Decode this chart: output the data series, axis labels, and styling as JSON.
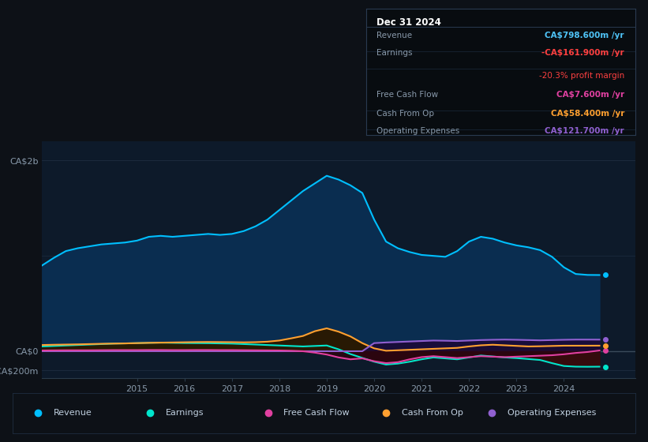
{
  "bg_color": "#0d1117",
  "plot_bg_color": "#0d1a2a",
  "title_text": "Dec 31 2024",
  "years": [
    2013.0,
    2013.25,
    2013.5,
    2013.75,
    2014.0,
    2014.25,
    2014.5,
    2014.75,
    2015.0,
    2015.25,
    2015.5,
    2015.75,
    2016.0,
    2016.25,
    2016.5,
    2016.75,
    2017.0,
    2017.25,
    2017.5,
    2017.75,
    2018.0,
    2018.25,
    2018.5,
    2018.75,
    2019.0,
    2019.25,
    2019.5,
    2019.75,
    2020.0,
    2020.25,
    2020.5,
    2020.75,
    2021.0,
    2021.25,
    2021.5,
    2021.75,
    2022.0,
    2022.25,
    2022.5,
    2022.75,
    2023.0,
    2023.25,
    2023.5,
    2023.75,
    2024.0,
    2024.25,
    2024.5,
    2024.75
  ],
  "revenue": [
    900,
    980,
    1050,
    1080,
    1100,
    1120,
    1130,
    1140,
    1160,
    1200,
    1210,
    1200,
    1210,
    1220,
    1230,
    1220,
    1230,
    1260,
    1310,
    1380,
    1480,
    1580,
    1680,
    1760,
    1840,
    1800,
    1740,
    1660,
    1380,
    1150,
    1080,
    1040,
    1010,
    1000,
    990,
    1050,
    1150,
    1200,
    1180,
    1140,
    1110,
    1090,
    1060,
    990,
    880,
    810,
    800,
    799
  ],
  "earnings": [
    50,
    55,
    60,
    65,
    70,
    75,
    80,
    82,
    85,
    88,
    90,
    88,
    86,
    85,
    84,
    82,
    80,
    75,
    70,
    65,
    60,
    55,
    50,
    55,
    60,
    20,
    -30,
    -70,
    -110,
    -140,
    -130,
    -110,
    -85,
    -65,
    -75,
    -85,
    -65,
    -45,
    -55,
    -65,
    -72,
    -82,
    -92,
    -125,
    -155,
    -162,
    -163,
    -162
  ],
  "free_cash_flow": [
    8,
    9,
    10,
    10,
    10,
    11,
    12,
    12,
    12,
    13,
    13,
    12,
    12,
    13,
    13,
    12,
    12,
    11,
    10,
    9,
    8,
    5,
    0,
    -15,
    -35,
    -65,
    -85,
    -75,
    -105,
    -125,
    -115,
    -85,
    -62,
    -52,
    -62,
    -72,
    -62,
    -52,
    -57,
    -62,
    -57,
    -52,
    -47,
    -42,
    -32,
    -18,
    -8,
    7.6
  ],
  "cash_from_op": [
    65,
    68,
    70,
    72,
    75,
    78,
    80,
    82,
    85,
    88,
    90,
    92,
    94,
    96,
    97,
    96,
    95,
    93,
    95,
    100,
    112,
    135,
    160,
    210,
    240,
    205,
    155,
    85,
    30,
    5,
    10,
    15,
    20,
    25,
    30,
    35,
    50,
    62,
    68,
    62,
    56,
    50,
    52,
    55,
    58,
    58,
    58,
    58.4
  ],
  "operating_expenses": [
    0,
    0,
    0,
    0,
    0,
    0,
    0,
    0,
    0,
    0,
    0,
    0,
    0,
    0,
    0,
    0,
    0,
    0,
    0,
    0,
    0,
    0,
    0,
    0,
    0,
    0,
    0,
    0,
    85,
    92,
    97,
    102,
    107,
    112,
    110,
    107,
    112,
    117,
    120,
    122,
    120,
    117,
    114,
    117,
    120,
    122,
    122,
    121.7
  ],
  "revenue_line_color": "#00bfff",
  "revenue_fill_color": "#0a2d50",
  "earnings_line_color": "#00e5cc",
  "earnings_pos_fill": "#0d4035",
  "earnings_neg_fill": "#3a0a0a",
  "fcf_line_color": "#e040a0",
  "fcf_pos_fill": "#3a0a2a",
  "fcf_neg_fill": "#2a0510",
  "cashop_line_color": "#ffa030",
  "cashop_fill_color": "#2a1800",
  "opex_line_color": "#9060d0",
  "opex_fill_color": "#1a0a38",
  "ytick_vals": [
    -200,
    0,
    2000
  ],
  "ytick_labels": [
    "-CA$200m",
    "CA$0",
    "CA$2b"
  ],
  "ylim": [
    -280,
    2200
  ],
  "xlim": [
    2013.0,
    2025.5
  ],
  "xtick_years": [
    2015,
    2016,
    2017,
    2018,
    2019,
    2020,
    2021,
    2022,
    2023,
    2024
  ],
  "info_rows": [
    {
      "label": "Revenue",
      "value": "CA$798.600m /yr",
      "value_color": "#4fc3f7",
      "extra": null
    },
    {
      "label": "Earnings",
      "value": "-CA$161.900m /yr",
      "value_color": "#ff4040",
      "extra": "-20.3% profit margin",
      "extra_color": "#ff4040"
    },
    {
      "label": "Free Cash Flow",
      "value": "CA$7.600m /yr",
      "value_color": "#e040a0",
      "extra": null
    },
    {
      "label": "Cash From Op",
      "value": "CA$58.400m /yr",
      "value_color": "#ffa030",
      "extra": null
    },
    {
      "label": "Operating Expenses",
      "value": "CA$121.700m /yr",
      "value_color": "#9060d0",
      "extra": null
    }
  ],
  "legend_items": [
    {
      "label": "Revenue",
      "color": "#00bfff"
    },
    {
      "label": "Earnings",
      "color": "#00e5cc"
    },
    {
      "label": "Free Cash Flow",
      "color": "#e040a0"
    },
    {
      "label": "Cash From Op",
      "color": "#ffa030"
    },
    {
      "label": "Operating Expenses",
      "color": "#9060d0"
    }
  ]
}
